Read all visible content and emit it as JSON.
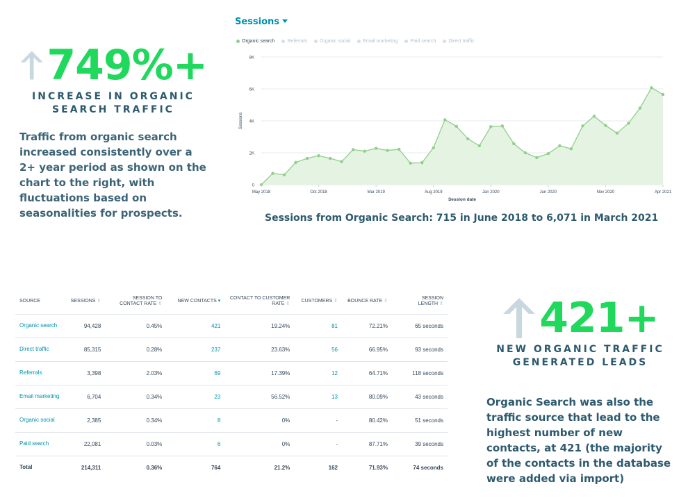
{
  "stat_top": {
    "value": "749%+",
    "label": "INCREASE IN ORGANIC SEARCH TRAFFIC",
    "description": "Traffic from organic search increased consistently over a 2+ year period as shown on the chart to the right, with fluctuations based on seasonalities for prospects.",
    "arrow_icon": "up-arrow-icon",
    "accent_color": "#1fd85c"
  },
  "chart": {
    "selector_label": "Sessions",
    "legend": [
      {
        "label": "Organic search",
        "active": true
      },
      {
        "label": "Referrals",
        "active": false
      },
      {
        "label": "Organic social",
        "active": false
      },
      {
        "label": "Email marketing",
        "active": false
      },
      {
        "label": "Paid search",
        "active": false
      },
      {
        "label": "Direct traffic",
        "active": false
      }
    ],
    "caption": "Sessions from Organic Search: 715 in June 2018 to 6,071 in March 2021"
  },
  "chart_data": {
    "type": "area",
    "title": "",
    "xlabel": "Session date",
    "ylabel": "Sessions",
    "ylim": [
      0,
      8000
    ],
    "yticks": [
      "0",
      "2K",
      "4K",
      "6K",
      "8K"
    ],
    "xticks": [
      "May 2018",
      "Oct 2018",
      "Mar 2019",
      "Aug 2019",
      "Jan 2020",
      "Jun 2020",
      "Nov 2020",
      "Apr 2021"
    ],
    "grid": true,
    "series": [
      {
        "name": "Organic search",
        "color": "#8fcf8a",
        "values": [
          0,
          715,
          620,
          1400,
          1650,
          1820,
          1650,
          1450,
          2200,
          2100,
          2280,
          2150,
          2220,
          1350,
          1380,
          2320,
          4070,
          3660,
          2880,
          2440,
          3640,
          3680,
          2570,
          2000,
          1700,
          1950,
          2440,
          2250,
          3680,
          4290,
          3710,
          3230,
          3850,
          4800,
          6071,
          5650
        ]
      }
    ]
  },
  "table": {
    "headers": [
      "SOURCE",
      "SESSIONS",
      "SESSION TO CONTACT RATE",
      "NEW CONTACTS",
      "CONTACT TO CUSTOMER RATE",
      "CUSTOMERS",
      "BOUNCE RATE",
      "SESSION LENGTH"
    ],
    "rows": [
      [
        "Organic search",
        "94,428",
        "0.45%",
        "421",
        "19.24%",
        "81",
        "72.21%",
        "65 seconds"
      ],
      [
        "Direct traffic",
        "85,315",
        "0.28%",
        "237",
        "23.63%",
        "56",
        "66.95%",
        "93 seconds"
      ],
      [
        "Referrals",
        "3,398",
        "2.03%",
        "69",
        "17.39%",
        "12",
        "64.71%",
        "118 seconds"
      ],
      [
        "Email marketing",
        "6,704",
        "0.34%",
        "23",
        "56.52%",
        "13",
        "80.09%",
        "43 seconds"
      ],
      [
        "Organic social",
        "2,385",
        "0.34%",
        "8",
        "0%",
        "-",
        "80.42%",
        "51 seconds"
      ],
      [
        "Paid search",
        "22,081",
        "0.03%",
        "6",
        "0%",
        "-",
        "87.71%",
        "39 seconds"
      ]
    ],
    "total": [
      "Total",
      "214,311",
      "0.36%",
      "764",
      "21.2%",
      "162",
      "71.93%",
      "74 seconds"
    ]
  },
  "stat_bottom": {
    "value": "421+",
    "label": "NEW ORGANIC TRAFFIC GENERATED LEADS",
    "description": "Organic Search was also the traffic source that lead to the highest number of new contacts, at 421 (the majority of the contacts in the database were added via import)",
    "arrow_icon": "up-arrow-icon"
  }
}
